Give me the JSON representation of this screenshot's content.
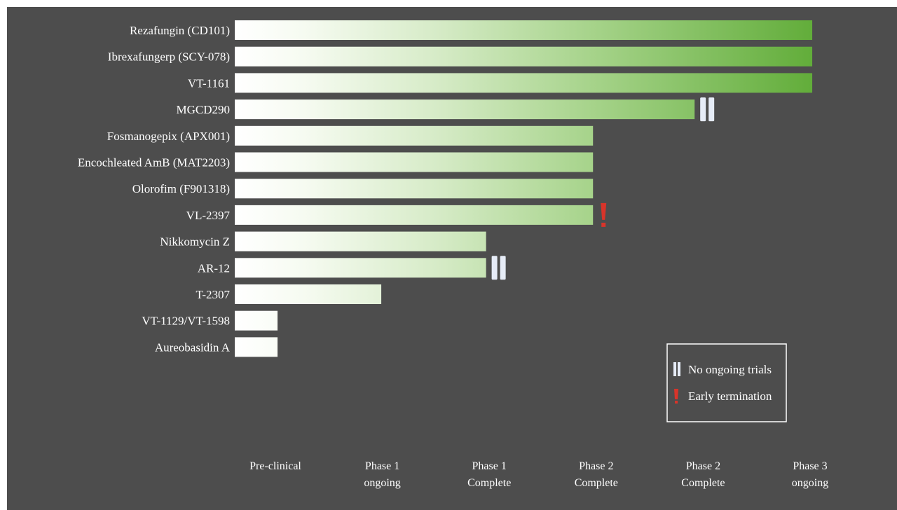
{
  "chart_data": {
    "type": "bar",
    "orientation": "horizontal",
    "stage_ticks": [
      {
        "line1": "Pre-clinical",
        "line2": ""
      },
      {
        "line1": "Phase 1",
        "line2": "ongoing"
      },
      {
        "line1": "Phase 1",
        "line2": "Complete"
      },
      {
        "line1": "Phase 2",
        "line2": "Complete"
      },
      {
        "line1": "Phase 2",
        "line2": "Complete"
      },
      {
        "line1": "Phase 3",
        "line2": "ongoing"
      }
    ],
    "bars": [
      {
        "label": "Rezafungin (CD101)",
        "value": 5.4,
        "marker": ""
      },
      {
        "label": "Ibrexafungerp (SCY-078)",
        "value": 5.4,
        "marker": ""
      },
      {
        "label": "VT-1161",
        "value": 5.4,
        "marker": ""
      },
      {
        "label": "MGCD290",
        "value": 4.3,
        "marker": "no-ongoing"
      },
      {
        "label": "Fosmanogepix (APX001)",
        "value": 3.35,
        "marker": ""
      },
      {
        "label": "Encochleated AmB (MAT2203)",
        "value": 3.35,
        "marker": ""
      },
      {
        "label": "Olorofim (F901318)",
        "value": 3.35,
        "marker": ""
      },
      {
        "label": "VL-2397",
        "value": 3.35,
        "marker": "early-termination"
      },
      {
        "label": "Nikkomycin Z",
        "value": 2.35,
        "marker": ""
      },
      {
        "label": "AR-12",
        "value": 2.35,
        "marker": "no-ongoing"
      },
      {
        "label": "T-2307",
        "value": 1.37,
        "marker": ""
      },
      {
        "label": "VT-1129/VT-1598",
        "value": 0.4,
        "marker": ""
      },
      {
        "label": "Aureobasidin A",
        "value": 0.4,
        "marker": ""
      }
    ],
    "xlim": [
      0,
      6
    ],
    "legend": {
      "placement": "bottom-right",
      "items": [
        {
          "symbol": "no-ongoing",
          "text": "No ongoing trials"
        },
        {
          "symbol": "early-termination",
          "text": "Early termination"
        }
      ]
    },
    "colors": {
      "background": "#4d4d4d",
      "bar_start": "#ffffff",
      "bar_end": "#62ad3a",
      "pause_marker": "#e6ecf7",
      "termination_marker": "#d8342a"
    },
    "grid": false
  }
}
